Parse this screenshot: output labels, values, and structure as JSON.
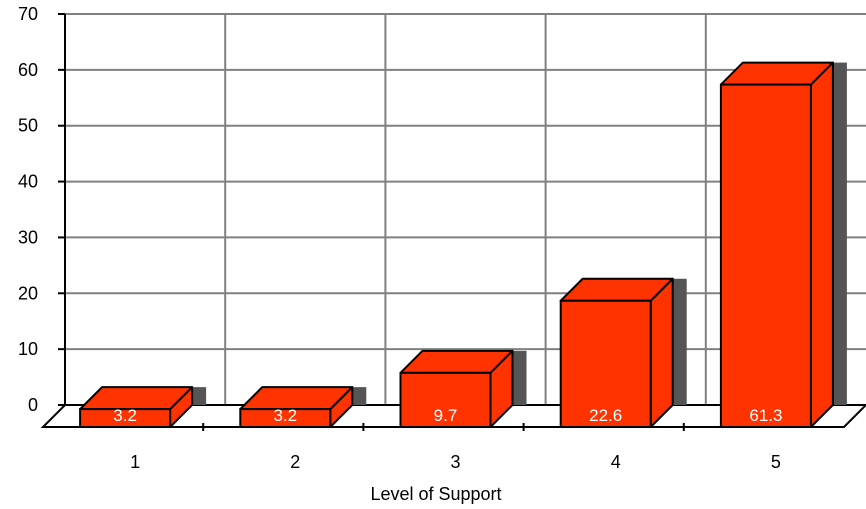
{
  "chart_data": {
    "type": "bar",
    "categories": [
      "1",
      "2",
      "3",
      "4",
      "5"
    ],
    "values": [
      3.2,
      3.2,
      9.7,
      22.6,
      61.3
    ],
    "data_labels": [
      "3.2",
      "3.2",
      "9.7",
      "22.6",
      "61.3"
    ],
    "title": "",
    "xlabel": "Level of Support",
    "ylabel": "",
    "ylim": [
      0,
      70
    ],
    "yticks": [
      "0",
      "10",
      "20",
      "30",
      "40",
      "50",
      "60",
      "70"
    ],
    "grid": true,
    "style": "3d-bar",
    "colors": {
      "bar_front": "#ff3300",
      "bar_top": "#ff3300",
      "bar_side": "#ff3300",
      "shadow": "#555555",
      "grid": "#808080",
      "outline": "#000000"
    }
  }
}
